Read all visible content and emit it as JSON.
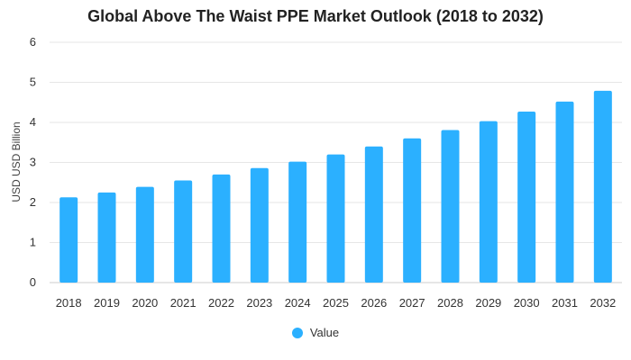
{
  "colors": {
    "bar": "#2BB0FF",
    "grid": "#E6E6E6",
    "baseline": "#CCCCCC"
  },
  "chart_data": {
    "type": "bar",
    "title": "Global Above The Waist PPE Market Outlook (2018 to 2032)",
    "xlabel": "",
    "ylabel": "USD USD Billion",
    "ylim": [
      0,
      6
    ],
    "yticks": [
      0,
      1,
      2,
      3,
      4,
      5,
      6
    ],
    "grid": true,
    "legend_position": "bottom-center",
    "categories": [
      "2018",
      "2019",
      "2020",
      "2021",
      "2022",
      "2023",
      "2024",
      "2025",
      "2026",
      "2027",
      "2028",
      "2029",
      "2030",
      "2031",
      "2032"
    ],
    "series": [
      {
        "name": "Value",
        "values": [
          2.13,
          2.25,
          2.39,
          2.55,
          2.7,
          2.86,
          3.02,
          3.2,
          3.4,
          3.6,
          3.81,
          4.03,
          4.27,
          4.52,
          4.79
        ]
      }
    ]
  }
}
